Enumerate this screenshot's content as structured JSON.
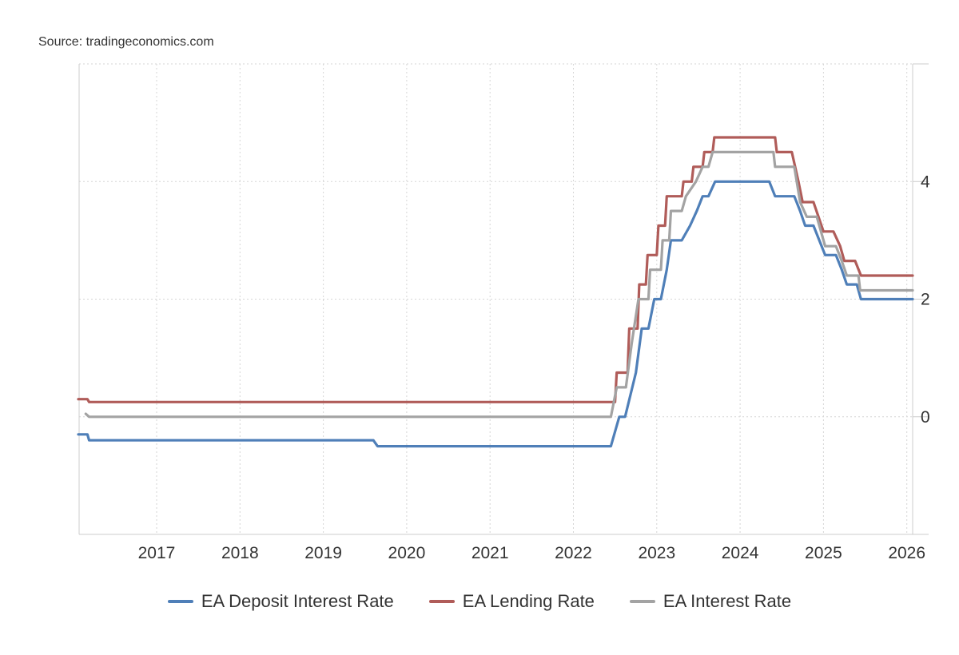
{
  "source_text": "Source: tradingeconomics.com",
  "colors": {
    "deposit": "#4f7fb8",
    "lending": "#b05c59",
    "interest": "#a3a3a3",
    "grid": "#d6d6d6",
    "axis": "#cccccc"
  },
  "chart_data": {
    "type": "line",
    "title": "",
    "xlabel": "",
    "ylabel": "",
    "xlim": [
      2016.07,
      2026.07
    ],
    "ylim": [
      -2,
      6
    ],
    "x_ticks": [
      2017,
      2018,
      2019,
      2020,
      2021,
      2022,
      2023,
      2024,
      2025,
      2026
    ],
    "x_tick_labels": [
      "2017",
      "2018",
      "2019",
      "2020",
      "2021",
      "2022",
      "2023",
      "2024",
      "2025",
      "2026"
    ],
    "y_ticks": [
      0,
      2,
      4
    ],
    "y_tick_labels": [
      "0",
      "2",
      "4"
    ],
    "grid": true,
    "legend_position": "bottom",
    "series": [
      {
        "name": "EA Deposit Interest Rate",
        "color_key": "deposit",
        "points": [
          [
            2016.0,
            -0.3
          ],
          [
            2016.17,
            -0.3
          ],
          [
            2016.19,
            -0.4
          ],
          [
            2019.6,
            -0.4
          ],
          [
            2019.65,
            -0.5
          ],
          [
            2022.45,
            -0.5
          ],
          [
            2022.55,
            0.0
          ],
          [
            2022.62,
            0.0
          ],
          [
            2022.75,
            0.75
          ],
          [
            2022.82,
            1.5
          ],
          [
            2022.9,
            1.5
          ],
          [
            2022.97,
            2.0
          ],
          [
            2023.05,
            2.0
          ],
          [
            2023.12,
            2.5
          ],
          [
            2023.17,
            3.0
          ],
          [
            2023.3,
            3.0
          ],
          [
            2023.4,
            3.25
          ],
          [
            2023.48,
            3.5
          ],
          [
            2023.55,
            3.75
          ],
          [
            2023.62,
            3.75
          ],
          [
            2023.7,
            4.0
          ],
          [
            2024.35,
            4.0
          ],
          [
            2024.42,
            3.75
          ],
          [
            2024.65,
            3.75
          ],
          [
            2024.72,
            3.5
          ],
          [
            2024.78,
            3.25
          ],
          [
            2024.88,
            3.25
          ],
          [
            2024.95,
            3.0
          ],
          [
            2025.02,
            2.75
          ],
          [
            2025.15,
            2.75
          ],
          [
            2025.22,
            2.5
          ],
          [
            2025.28,
            2.25
          ],
          [
            2025.4,
            2.25
          ],
          [
            2025.45,
            2.0
          ],
          [
            2026.07,
            2.0
          ]
        ]
      },
      {
        "name": "EA Lending Rate",
        "color_key": "lending",
        "points": [
          [
            2016.0,
            0.3
          ],
          [
            2016.17,
            0.3
          ],
          [
            2016.19,
            0.25
          ],
          [
            2022.5,
            0.25
          ],
          [
            2022.52,
            0.75
          ],
          [
            2022.65,
            0.75
          ],
          [
            2022.67,
            1.5
          ],
          [
            2022.77,
            1.5
          ],
          [
            2022.79,
            2.25
          ],
          [
            2022.87,
            2.25
          ],
          [
            2022.89,
            2.75
          ],
          [
            2023.0,
            2.75
          ],
          [
            2023.02,
            3.25
          ],
          [
            2023.1,
            3.25
          ],
          [
            2023.12,
            3.75
          ],
          [
            2023.3,
            3.75
          ],
          [
            2023.32,
            4.0
          ],
          [
            2023.42,
            4.0
          ],
          [
            2023.44,
            4.25
          ],
          [
            2023.55,
            4.25
          ],
          [
            2023.57,
            4.5
          ],
          [
            2023.67,
            4.5
          ],
          [
            2023.69,
            4.75
          ],
          [
            2024.42,
            4.75
          ],
          [
            2024.44,
            4.5
          ],
          [
            2024.62,
            4.5
          ],
          [
            2024.7,
            4.0
          ],
          [
            2024.75,
            3.65
          ],
          [
            2024.88,
            3.65
          ],
          [
            2025.0,
            3.15
          ],
          [
            2025.12,
            3.15
          ],
          [
            2025.2,
            2.9
          ],
          [
            2025.25,
            2.65
          ],
          [
            2025.38,
            2.65
          ],
          [
            2025.45,
            2.4
          ],
          [
            2026.07,
            2.4
          ]
        ]
      },
      {
        "name": "EA Interest Rate",
        "color_key": "interest",
        "points": [
          [
            2016.15,
            0.05
          ],
          [
            2016.19,
            0.0
          ],
          [
            2022.45,
            0.0
          ],
          [
            2022.52,
            0.5
          ],
          [
            2022.63,
            0.5
          ],
          [
            2022.7,
            1.25
          ],
          [
            2022.78,
            2.0
          ],
          [
            2022.9,
            2.0
          ],
          [
            2022.92,
            2.5
          ],
          [
            2023.05,
            2.5
          ],
          [
            2023.07,
            3.0
          ],
          [
            2023.15,
            3.0
          ],
          [
            2023.17,
            3.5
          ],
          [
            2023.3,
            3.5
          ],
          [
            2023.35,
            3.75
          ],
          [
            2023.47,
            4.0
          ],
          [
            2023.55,
            4.25
          ],
          [
            2023.62,
            4.25
          ],
          [
            2023.67,
            4.5
          ],
          [
            2024.4,
            4.5
          ],
          [
            2024.42,
            4.25
          ],
          [
            2024.65,
            4.25
          ],
          [
            2024.72,
            3.65
          ],
          [
            2024.8,
            3.4
          ],
          [
            2024.92,
            3.4
          ],
          [
            2025.02,
            2.9
          ],
          [
            2025.15,
            2.9
          ],
          [
            2025.22,
            2.65
          ],
          [
            2025.28,
            2.4
          ],
          [
            2025.42,
            2.4
          ],
          [
            2025.44,
            2.15
          ],
          [
            2026.07,
            2.15
          ]
        ]
      }
    ]
  }
}
